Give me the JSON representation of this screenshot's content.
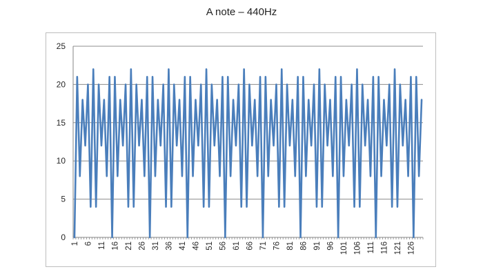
{
  "chart_data": {
    "type": "line",
    "title": "A note – 440Hz",
    "xlabel": "",
    "ylabel": "",
    "ylim": [
      0,
      25
    ],
    "yticks": [
      0,
      5,
      10,
      15,
      20,
      25
    ],
    "xlim": [
      1,
      128
    ],
    "xtick_labels": [
      1,
      6,
      11,
      16,
      21,
      26,
      31,
      36,
      41,
      46,
      51,
      56,
      61,
      66,
      71,
      76,
      81,
      86,
      91,
      96,
      101,
      106,
      111,
      116,
      121,
      126
    ],
    "grid": "horizontal",
    "legend": "none",
    "color": "#4a7ebb",
    "x_start": 1,
    "values": [
      0,
      21,
      8,
      18,
      12,
      20,
      4,
      22,
      4,
      20,
      12,
      18,
      8,
      21,
      0,
      21,
      8,
      18,
      12,
      20,
      4,
      22,
      4,
      20,
      12,
      18,
      8,
      21,
      0,
      21,
      8,
      18,
      12,
      20,
      4,
      22,
      4,
      20,
      12,
      18,
      8,
      21,
      0,
      21,
      8,
      18,
      12,
      20,
      4,
      22,
      4,
      20,
      12,
      18,
      8,
      21,
      0,
      21,
      8,
      18,
      12,
      20,
      4,
      22,
      4,
      20,
      12,
      18,
      8,
      21,
      0,
      21,
      8,
      18,
      12,
      20,
      4,
      22,
      4,
      20,
      12,
      18,
      8,
      21,
      0,
      21,
      8,
      18,
      12,
      20,
      4,
      22,
      4,
      20,
      12,
      18,
      8,
      21,
      0,
      21,
      8,
      18,
      12,
      20,
      4,
      22,
      4,
      20,
      12,
      18,
      8,
      21,
      0,
      21,
      8,
      18,
      12,
      20,
      4,
      22,
      4,
      20,
      12,
      18,
      8,
      21,
      0,
      21,
      8,
      18
    ]
  }
}
